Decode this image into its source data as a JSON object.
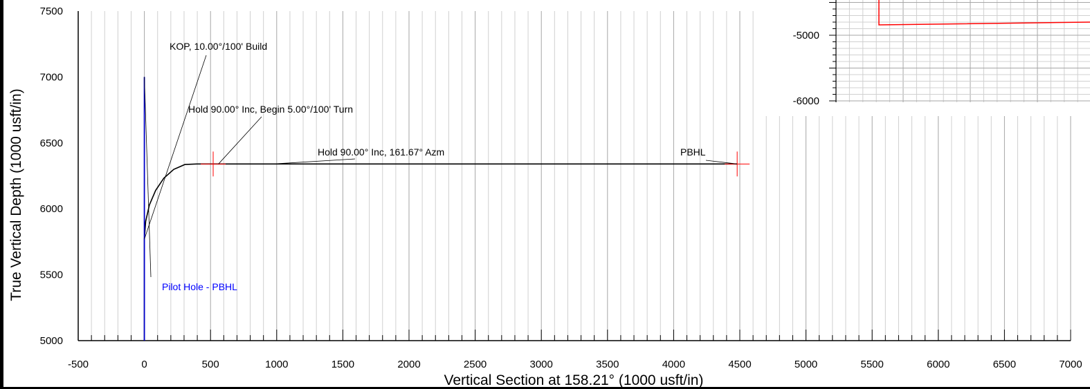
{
  "chart_data": [
    {
      "type": "line",
      "title": "",
      "xlabel": "Vertical Section at 158.21° (1000 usft/in)",
      "ylabel": "True Vertical Depth (1000 usft/in)",
      "xlim": [
        -500,
        7000
      ],
      "ylim": [
        7500,
        5000
      ],
      "y_inverted": true,
      "grid": true,
      "x_ticks": [
        "-500",
        "0",
        "500",
        "1000",
        "1500",
        "2000",
        "2500",
        "3000",
        "3500",
        "4000",
        "4500",
        "5000",
        "5500",
        "6000",
        "6500",
        "7000"
      ],
      "y_ticks": [
        "5000",
        "5500",
        "6000",
        "6500",
        "7000",
        "7500"
      ],
      "series": [
        {
          "color": "#000000",
          "x": [
            0,
            0,
            10,
            38,
            85,
            147,
            222,
            306,
            396,
            490,
            520,
            900,
            4480
          ],
          "y": [
            5000,
            5770,
            5905,
            6030,
            6140,
            6232,
            6299,
            6336,
            6340,
            6340,
            6340,
            6340,
            6340
          ]
        },
        {
          "color": "#0000c8",
          "x": [
            0,
            0
          ],
          "y": [
            5000,
            7000
          ]
        }
      ],
      "target_markers": [
        {
          "x": 520,
          "y": 6340,
          "color": "#ff0000"
        },
        {
          "x": 4480,
          "y": 6340,
          "color": "#ff0000"
        }
      ],
      "annotations": [
        {
          "text": "KOP, 10.00°/100' Build",
          "x": 0,
          "y": 5770,
          "color": "#000000"
        },
        {
          "text": "Hold 90.00° Inc, Begin 5.00°/100' Turn",
          "x": 560,
          "y": 6340,
          "color": "#000000"
        },
        {
          "text": "Hold 90.00° Inc, 161.67° Azm",
          "x": 970,
          "y": 6340,
          "color": "#000000"
        },
        {
          "text": "PBHL",
          "x": 4480,
          "y": 6340,
          "color": "#000000"
        },
        {
          "text": "Pilot Hole - PBHL",
          "x": 0,
          "y": 7000,
          "color": "#0000ff"
        }
      ]
    },
    {
      "type": "line",
      "title": "",
      "y_ticks": [
        "-5000",
        "-6000"
      ],
      "ylim": [
        -4000,
        -6000
      ],
      "grid": true,
      "series": [
        {
          "color": "#ff0000",
          "points": [
            [
              0,
              -4000
            ],
            [
              0,
              -4850
            ],
            [
              1.0,
              -4810
            ]
          ]
        }
      ]
    }
  ]
}
